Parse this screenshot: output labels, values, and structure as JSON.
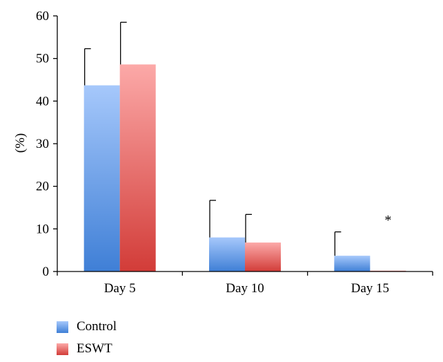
{
  "chart_data": {
    "type": "bar",
    "title": "",
    "xlabel": "",
    "ylabel": "(%)",
    "ylim": [
      0,
      60
    ],
    "yticks": [
      0,
      10,
      20,
      30,
      40,
      50,
      60
    ],
    "categories": [
      "Day 5",
      "Day 10",
      "Day 15"
    ],
    "series": [
      {
        "name": "Control",
        "values": [
          43.7,
          8.0,
          3.7
        ],
        "error": [
          8.6,
          8.7,
          5.6
        ],
        "color_top": "#a6c8fb",
        "color_bottom": "#3f7fd6"
      },
      {
        "name": "ESWT",
        "values": [
          48.6,
          6.8,
          0.2
        ],
        "error": [
          9.9,
          6.6,
          0.0
        ],
        "color_top": "#fca9a8",
        "color_bottom": "#d23c38"
      }
    ],
    "annotations": [
      {
        "text": "*",
        "category": "Day 15",
        "series": "ESWT",
        "y": 12
      }
    ],
    "legend_position": "bottom-left"
  }
}
